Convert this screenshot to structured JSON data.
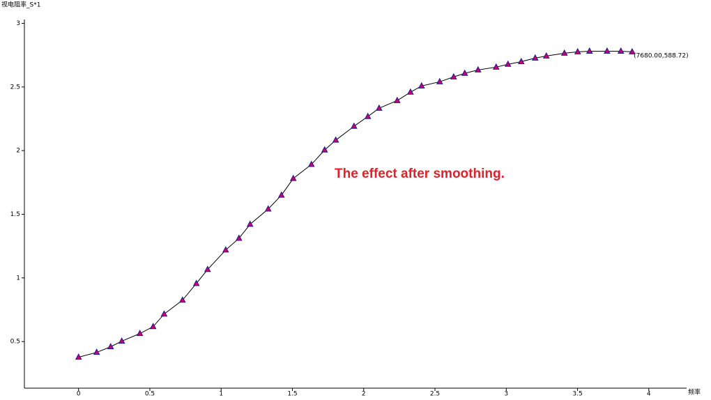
{
  "chart_data": {
    "type": "line",
    "y_label": "视电阻率_S*1",
    "x_label": "频率",
    "annotations": [
      "(7680.00,588.72)",
      "The effect after smoothing."
    ],
    "x": [
      0,
      0.127,
      0.225,
      0.303,
      0.43,
      0.523,
      0.6,
      0.729,
      0.826,
      0.905,
      1.032,
      1.125,
      1.203,
      1.33,
      1.423,
      1.506,
      1.633,
      1.726,
      1.804,
      1.932,
      2.029,
      2.108,
      2.235,
      2.328,
      2.406,
      2.533,
      2.631,
      2.709,
      2.802,
      2.929,
      3.012,
      3.105,
      3.203,
      3.281,
      3.408,
      3.501,
      3.584,
      3.707,
      3.804,
      3.883
    ],
    "values": [
      0.377,
      0.415,
      0.459,
      0.503,
      0.563,
      0.617,
      0.716,
      0.825,
      0.956,
      1.066,
      1.219,
      1.311,
      1.421,
      1.541,
      1.65,
      1.781,
      1.891,
      2.005,
      2.082,
      2.191,
      2.268,
      2.333,
      2.393,
      2.459,
      2.508,
      2.541,
      2.579,
      2.607,
      2.634,
      2.656,
      2.678,
      2.699,
      2.727,
      2.743,
      2.765,
      2.776,
      2.781,
      2.781,
      2.781,
      2.776
    ],
    "color": "#000000",
    "marker_color": "#cc0066",
    "marker_edge": "#1a1a99",
    "annotation_color": "#e0202a",
    "xlim": [
      -0.38,
      4.265
    ],
    "ylim": [
      0.134,
      3.03
    ],
    "xticks": [
      0,
      0.5,
      1,
      1.5,
      2,
      2.5,
      3,
      3.5,
      4
    ],
    "yticks": [
      0.5,
      1,
      1.5,
      2,
      2.5,
      3
    ],
    "grid": false
  }
}
